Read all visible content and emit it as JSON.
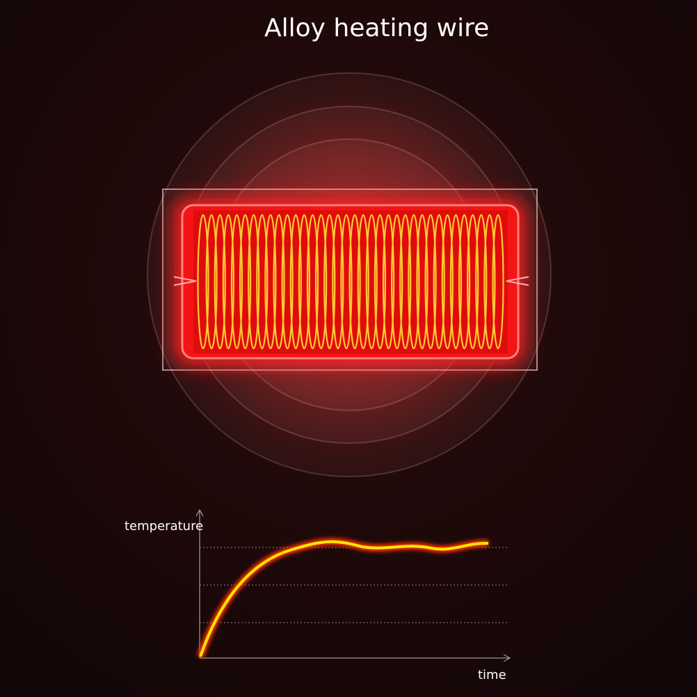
{
  "title": "Alloy heating wire",
  "graph": {
    "y_label": "temperature",
    "x_label": "time"
  }
}
